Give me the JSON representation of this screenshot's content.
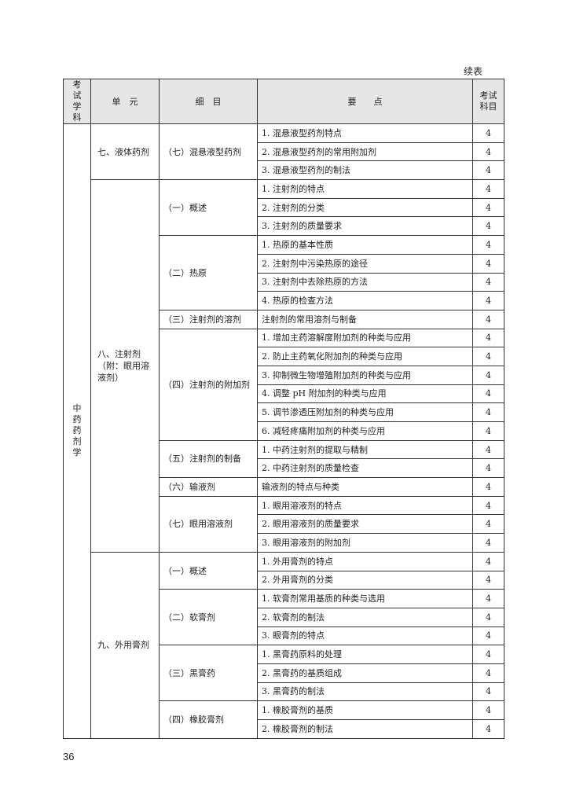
{
  "continued_label": "续表",
  "page_number": "36",
  "headers": {
    "subject": "考试\n学科",
    "unit": "单　元",
    "detail": "细　目",
    "points": "要　　点",
    "exam": "考试\n科目"
  },
  "subject": "中药药剂学",
  "units": [
    {
      "name": "七、液体药剂",
      "items": [
        {
          "name": "（七）混悬液型药剂",
          "points": [
            "1. 混悬液型药剂特点",
            "2. 混悬液型药剂的常用附加剂",
            "3. 混悬液型药剂的制法"
          ]
        }
      ]
    },
    {
      "name": "八、注射剂（附：眼用溶液剂）",
      "items": [
        {
          "name": "（一）概述",
          "points": [
            "1. 注射剂的特点",
            "2. 注射剂的分类",
            "3. 注射剂的质量要求"
          ]
        },
        {
          "name": "（二）热原",
          "points": [
            "1. 热原的基本性质",
            "2. 注射剂中污染热原的途径",
            "3. 注射剂中去除热原的方法",
            "4. 热原的检查方法"
          ]
        },
        {
          "name": "（三）注射剂的溶剂",
          "points": [
            "注射剂的常用溶剂与制备"
          ]
        },
        {
          "name": "（四）注射剂的附加剂",
          "points": [
            "1. 增加主药溶解度附加剂的种类与应用",
            "2. 防止主药氧化附加剂的种类与应用",
            "3. 抑制微生物增殖附加剂的种类与应用",
            "4. 调整 pH 附加剂的种类与应用",
            "5. 调节渗透压附加剂的种类与应用",
            "6. 减轻疼痛附加剂的种类与应用"
          ]
        },
        {
          "name": "（五）注射剂的制备",
          "points": [
            "1. 中药注射剂的提取与精制",
            "2. 中药注射剂的质量检查"
          ]
        },
        {
          "name": "（六）输液剂",
          "points": [
            "输液剂的特点与种类"
          ]
        },
        {
          "name": "（七）眼用溶液剂",
          "points": [
            "1. 眼用溶液剂的特点",
            "2. 眼用溶液剂的质量要求",
            "3. 眼用溶液剂的附加剂"
          ]
        }
      ]
    },
    {
      "name": "九、外用膏剂",
      "items": [
        {
          "name": "（一）概述",
          "points": [
            "1. 外用膏剂的特点",
            "2. 外用膏剂的分类"
          ]
        },
        {
          "name": "（二）软膏剂",
          "points": [
            "1. 软膏剂常用基质的种类与选用",
            "2. 软膏剂的制法",
            "3. 眼膏剂的特点"
          ]
        },
        {
          "name": "（三）黑膏药",
          "points": [
            "1. 黑膏药原料的处理",
            "2. 黑膏药的基质组成",
            "3. 黑膏药的制法"
          ]
        },
        {
          "name": "（四）橡胶膏剂",
          "points": [
            "1. 橡胶膏剂的基质",
            "2. 橡胶膏剂的制法"
          ]
        }
      ]
    }
  ],
  "exam_subject_value": "4"
}
